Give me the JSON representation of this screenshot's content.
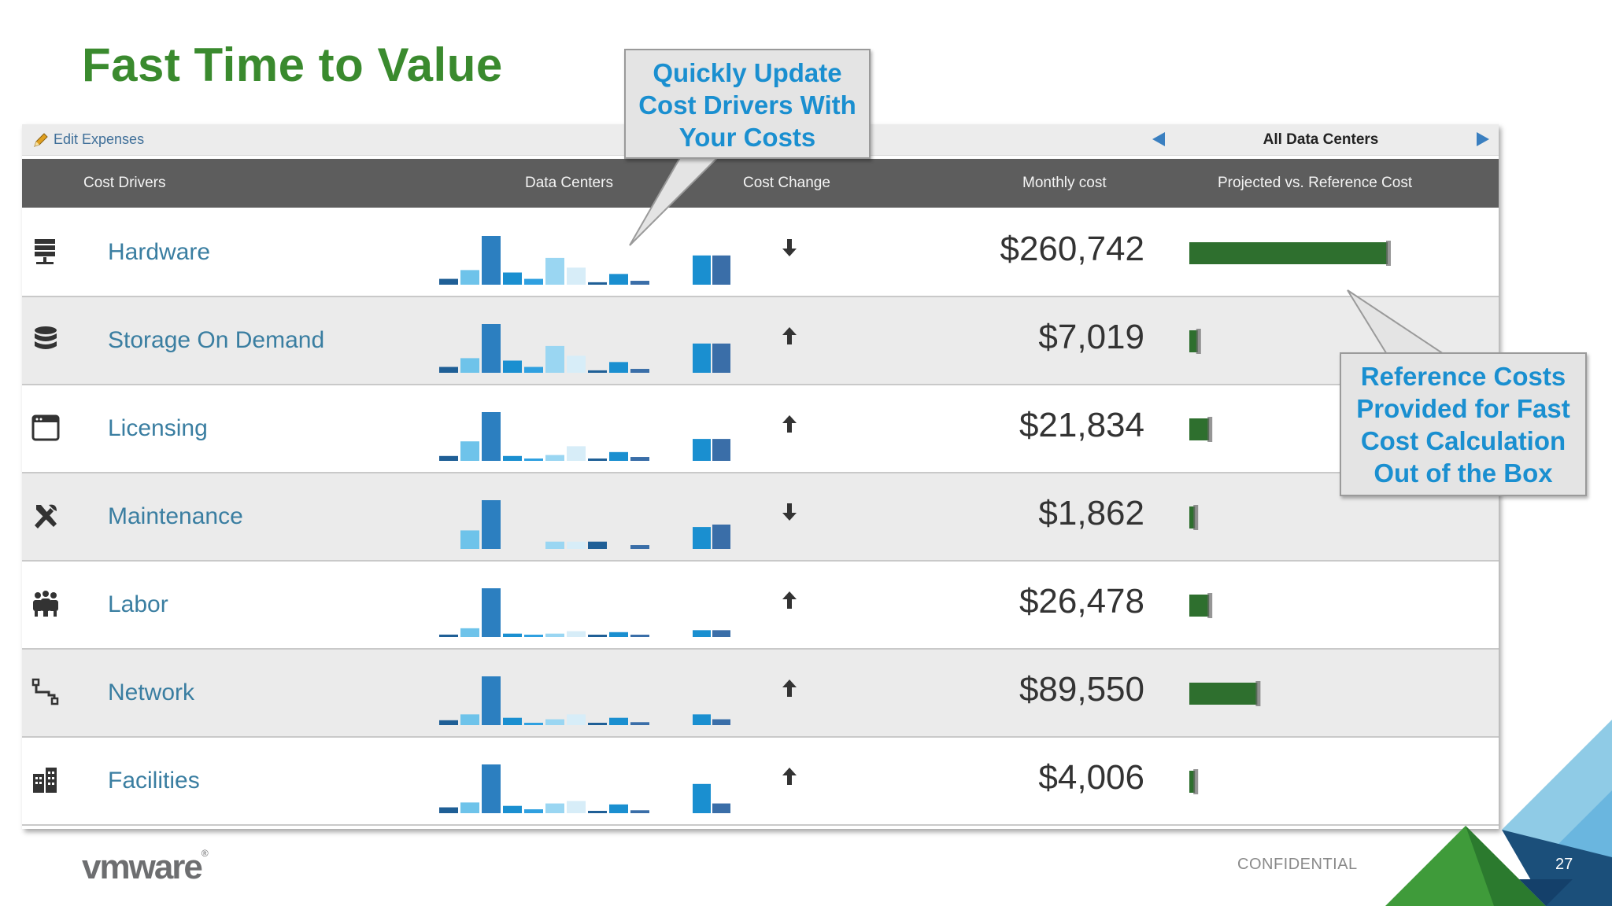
{
  "slide": {
    "title": "Fast Time to Value",
    "confidential": "CONFIDENTIAL",
    "page_number": "27",
    "logo": "vmware",
    "logo_mark": "®"
  },
  "callouts": {
    "top": [
      "Quickly Update",
      "Cost Drivers With",
      "Your Costs"
    ],
    "right": [
      "Reference Costs",
      "Provided for Fast",
      "Cost Calculation",
      "Out of the Box"
    ]
  },
  "toolbar": {
    "edit_label": "Edit Expenses",
    "data_center_selector": "All Data Centers"
  },
  "table": {
    "headers": {
      "cost_drivers": "Cost Drivers",
      "data_centers": "Data Centers",
      "cost_change": "Cost Change",
      "monthly_cost": "Monthly cost",
      "projected": "Projected vs. Reference Cost"
    },
    "rows": [
      {
        "icon": "server-icon",
        "label": "Hardware",
        "cost": "$260,742",
        "change": "down",
        "projected_fraction": 0.7,
        "bars": [
          0.12,
          0.3,
          1.0,
          0.25,
          0.12,
          0.55,
          0.35,
          0.05,
          0.22,
          0.08
        ],
        "pair": [
          0.6,
          0.6
        ]
      },
      {
        "icon": "database-icon",
        "label": "Storage On Demand",
        "cost": "$7,019",
        "change": "up",
        "projected_fraction": 0.03,
        "bars": [
          0.12,
          0.3,
          1.0,
          0.25,
          0.12,
          0.55,
          0.35,
          0.05,
          0.22,
          0.08
        ],
        "pair": [
          0.6,
          0.6
        ]
      },
      {
        "icon": "window-icon",
        "label": "Licensing",
        "cost": "$21,834",
        "change": "up",
        "projected_fraction": 0.07,
        "bars": [
          0.1,
          0.4,
          1.0,
          0.1,
          0.04,
          0.12,
          0.3,
          0.04,
          0.18,
          0.08
        ],
        "pair": [
          0.45,
          0.45
        ]
      },
      {
        "icon": "tools-icon",
        "label": "Maintenance",
        "cost": "$1,862",
        "change": "down",
        "projected_fraction": 0.02,
        "bars": [
          0.0,
          0.38,
          1.0,
          0.0,
          0.0,
          0.15,
          0.15,
          0.15,
          0.0,
          0.08
        ],
        "pair": [
          0.45,
          0.5
        ]
      },
      {
        "icon": "team-icon",
        "label": "Labor",
        "cost": "$26,478",
        "change": "up",
        "projected_fraction": 0.07,
        "bars": [
          0.05,
          0.18,
          1.0,
          0.07,
          0.04,
          0.07,
          0.12,
          0.04,
          0.1,
          0.04
        ],
        "pair": [
          0.14,
          0.14
        ]
      },
      {
        "icon": "network-icon",
        "label": "Network",
        "cost": "$89,550",
        "change": "up",
        "projected_fraction": 0.24,
        "bars": [
          0.1,
          0.22,
          1.0,
          0.15,
          0.04,
          0.12,
          0.22,
          0.04,
          0.15,
          0.06
        ],
        "pair": [
          0.22,
          0.12
        ]
      },
      {
        "icon": "building-icon",
        "label": "Facilities",
        "cost": "$4,006",
        "change": "up",
        "projected_fraction": 0.02,
        "bars": [
          0.12,
          0.22,
          1.0,
          0.15,
          0.08,
          0.2,
          0.25,
          0.04,
          0.18,
          0.06
        ],
        "pair": [
          0.6,
          0.2
        ]
      }
    ]
  },
  "colors": {
    "title_green": "#3a8a2e",
    "label_blue": "#3a7ea1",
    "projected_green": "#2e6f2e",
    "callout_text": "#1a8fd0",
    "spark_palette": [
      "#1f5f96",
      "#6ec3ea",
      "#2c7fc0",
      "#1a8fd0",
      "#2fa0e0",
      "#9ad6f2",
      "#d7edf8",
      "#1f5f96",
      "#1a8fd0",
      "#3a6ea8"
    ]
  }
}
